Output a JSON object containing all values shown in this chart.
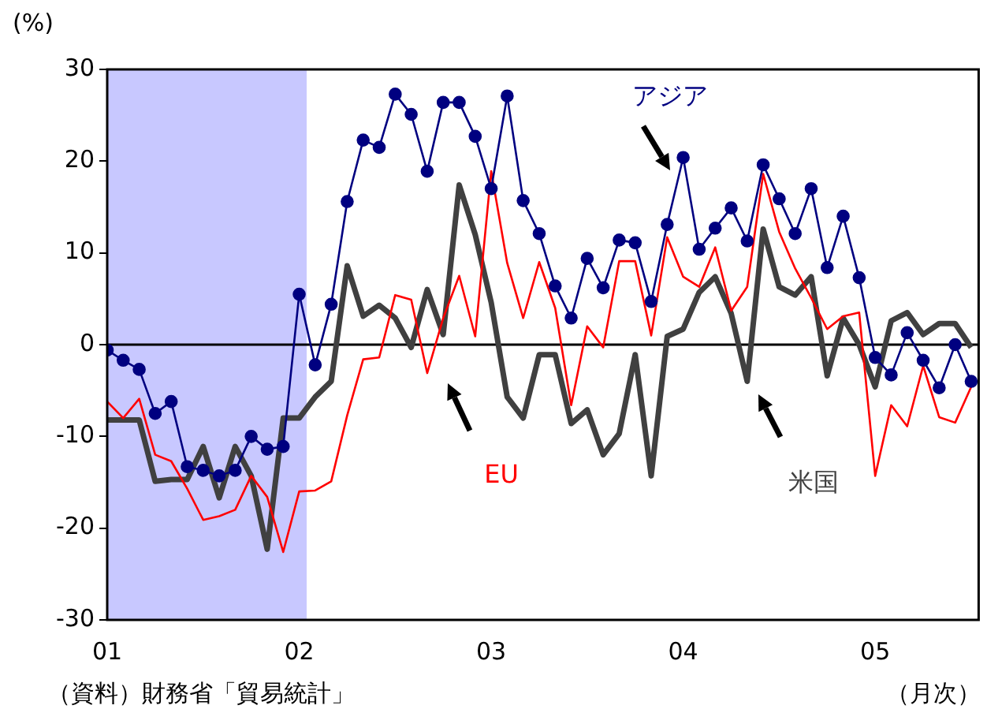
{
  "chart_data": {
    "type": "line",
    "ylabel": "(%)",
    "xlabel": "（月次）",
    "annotations": [
      "（資料）財務省「貿易統計」"
    ],
    "x": [
      "2001-01",
      "2001-02",
      "2001-03",
      "2001-04",
      "2001-05",
      "2001-06",
      "2001-07",
      "2001-08",
      "2001-09",
      "2001-10",
      "2001-11",
      "2001-12",
      "2002-01",
      "2002-02",
      "2002-03",
      "2002-04",
      "2002-05",
      "2002-06",
      "2002-07",
      "2002-08",
      "2002-09",
      "2002-10",
      "2002-11",
      "2002-12",
      "2003-01",
      "2003-02",
      "2003-03",
      "2003-04",
      "2003-05",
      "2003-06",
      "2003-07",
      "2003-08",
      "2003-09",
      "2003-10",
      "2003-11",
      "2003-12",
      "2004-01",
      "2004-02",
      "2004-03",
      "2004-04",
      "2004-05",
      "2004-06",
      "2004-07",
      "2004-08",
      "2004-09",
      "2004-10",
      "2004-11",
      "2004-12",
      "2005-01",
      "2005-02",
      "2005-03",
      "2005-04",
      "2005-05",
      "2005-06",
      "2005-07"
    ],
    "series": [
      {
        "name": "アジア",
        "color": "#000080",
        "marker": "circle",
        "values": [
          -0.6,
          -1.7,
          -2.7,
          -7.5,
          -6.2,
          -13.3,
          -13.7,
          -14.3,
          -13.7,
          -10,
          -11.4,
          -11.1,
          5.5,
          -2.2,
          4.4,
          15.6,
          22.3,
          21.5,
          27.3,
          25.1,
          18.9,
          26.4,
          26.4,
          22.7,
          17,
          27.1,
          15.7,
          12.1,
          6.4,
          2.9,
          9.4,
          6.2,
          11.4,
          11.1,
          4.7,
          13.1,
          20.4,
          10.4,
          12.7,
          14.9,
          11.3,
          19.6,
          15.9,
          12.1,
          17,
          8.4,
          14,
          7.3,
          -1.4,
          -3.3,
          1.3,
          -1.7,
          -4.7,
          0,
          -4
        ]
      },
      {
        "name": "EU",
        "color": "#ff0000",
        "marker": "none",
        "values": [
          -6.2,
          -8,
          -5.9,
          -12,
          -12.7,
          -15.7,
          -19.1,
          -18.7,
          -18,
          -14.3,
          -16.6,
          -22.6,
          -16,
          -15.9,
          -14.9,
          -7.7,
          -1.6,
          -1.4,
          5.4,
          4.9,
          -3.1,
          2.9,
          7.5,
          0.9,
          18.9,
          8.9,
          2.9,
          9,
          4,
          -6.6,
          2,
          -0.3,
          9.1,
          9.1,
          1,
          11.7,
          7.4,
          6.3,
          10.6,
          3.7,
          6.3,
          18.6,
          12.3,
          8.3,
          5.1,
          1.7,
          3.1,
          3.5,
          -14.3,
          -6.6,
          -8.9,
          -2.3,
          -7.9,
          -8.5,
          -4.6
        ]
      },
      {
        "name": "米国",
        "color": "#404040",
        "marker": "none",
        "values": [
          -8.2,
          -8.2,
          -8.2,
          -14.9,
          -14.7,
          -14.7,
          -11.1,
          -16.7,
          -11.1,
          -14.3,
          -22.3,
          -8,
          -8,
          -5.7,
          -4,
          8.6,
          3.1,
          4.3,
          2.9,
          -0.3,
          6,
          1.1,
          17.4,
          12,
          4.6,
          -5.7,
          -8,
          -1.1,
          -1.1,
          -8.6,
          -7.1,
          -12,
          -9.7,
          -1.1,
          -14.3,
          0.9,
          1.7,
          5.7,
          7.4,
          3.4,
          -4,
          12.6,
          6.3,
          5.4,
          7.4,
          -3.4,
          2.9,
          0,
          -4.6,
          2.6,
          3.5,
          1.1,
          2.3,
          2.3,
          -0.3
        ]
      }
    ],
    "xlim": [
      "2001-01",
      "2005-07-15"
    ],
    "xticks": [
      {
        "value": "2001-01",
        "label": "01"
      },
      {
        "value": "2002-01",
        "label": "02"
      },
      {
        "value": "2003-01",
        "label": "03"
      },
      {
        "value": "2004-01",
        "label": "04"
      },
      {
        "value": "2005-01",
        "label": "05"
      }
    ],
    "ylim": [
      -30,
      30
    ],
    "yticks": [
      -30,
      -20,
      -10,
      0,
      10,
      20,
      30
    ],
    "bands": [
      {
        "axis": "x",
        "from": "2001-01",
        "to": "2002-01-15",
        "color": "#c8c8ff"
      }
    ],
    "ref_lines": [
      {
        "axis": "y",
        "value": 0,
        "color": "#000000"
      }
    ],
    "grid": false,
    "legend": false,
    "line_style": "solid"
  }
}
